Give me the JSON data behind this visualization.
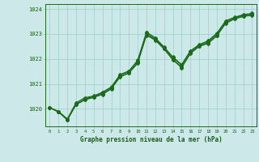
{
  "xlabel": "Graphe pression niveau de la mer (hPa)",
  "hours": [
    0,
    1,
    2,
    3,
    4,
    5,
    6,
    7,
    8,
    9,
    10,
    11,
    12,
    13,
    14,
    15,
    16,
    17,
    18,
    19,
    20,
    21,
    22,
    23
  ],
  "series": [
    [
      1020.05,
      1019.9,
      1019.55,
      1020.2,
      1020.4,
      1020.5,
      1020.65,
      1020.85,
      1021.35,
      1021.5,
      1021.9,
      1023.05,
      1022.8,
      1022.45,
      1022.05,
      1021.75,
      1022.3,
      1022.55,
      1022.7,
      1023.0,
      1023.5,
      1023.65,
      1023.75,
      1023.8
    ],
    [
      1020.05,
      1019.88,
      1019.58,
      1020.18,
      1020.38,
      1020.48,
      1020.6,
      1020.82,
      1021.3,
      1021.45,
      1021.85,
      1022.98,
      1022.78,
      1022.43,
      1021.98,
      1021.68,
      1022.25,
      1022.52,
      1022.65,
      1022.95,
      1023.45,
      1023.62,
      1023.72,
      1023.77
    ],
    [
      1020.05,
      1019.9,
      1019.6,
      1020.25,
      1020.45,
      1020.52,
      1020.67,
      1020.88,
      1021.38,
      1021.52,
      1021.95,
      1023.08,
      1022.85,
      1022.48,
      1022.08,
      1021.78,
      1022.33,
      1022.58,
      1022.73,
      1023.03,
      1023.53,
      1023.67,
      1023.78,
      1023.83
    ],
    [
      1020.05,
      1019.87,
      1019.56,
      1020.17,
      1020.36,
      1020.46,
      1020.58,
      1020.8,
      1021.28,
      1021.43,
      1021.83,
      1022.95,
      1022.75,
      1022.4,
      1021.96,
      1021.65,
      1022.22,
      1022.5,
      1022.62,
      1022.92,
      1023.42,
      1023.6,
      1023.7,
      1023.75
    ]
  ],
  "line_color": "#1a6b1a",
  "bg_color": "#cce8e8",
  "grid_color": "#9ecece",
  "axis_label_color": "#1a5c1a",
  "tick_label_color": "#1a5c1a",
  "ylim": [
    1019.3,
    1024.2
  ],
  "yticks": [
    1020,
    1021,
    1022,
    1023,
    1024
  ],
  "marker": "D",
  "markersize": 2.0,
  "linewidth": 0.8
}
